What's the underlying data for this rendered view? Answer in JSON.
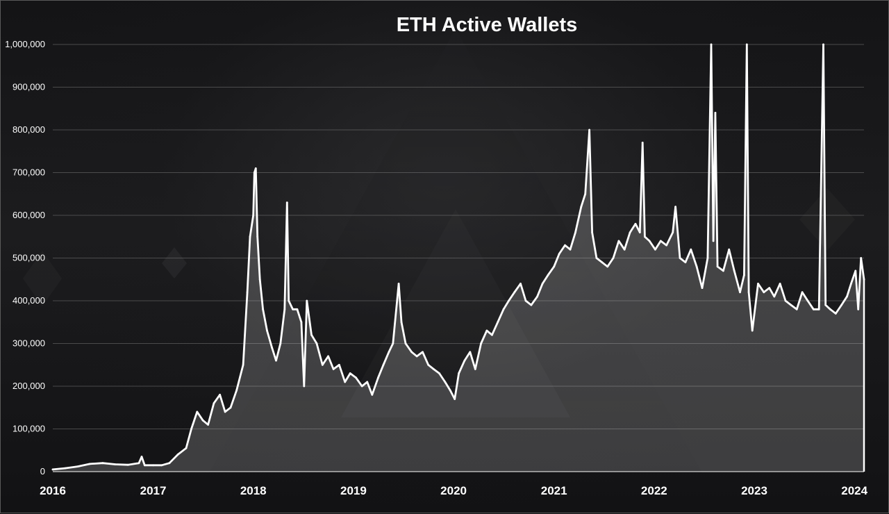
{
  "chart_data": {
    "type": "area",
    "title": "ETH Active Wallets",
    "xlabel": "",
    "ylabel": "",
    "ylim": [
      0,
      1000000
    ],
    "xlim": [
      "2016-01-01",
      "2024-02-05"
    ],
    "yticks": [
      0,
      100000,
      200000,
      300000,
      400000,
      500000,
      600000,
      700000,
      800000,
      900000,
      1000000
    ],
    "ytick_labels": [
      "0",
      "100,000",
      "200,000",
      "300,000",
      "400,000",
      "500,000",
      "600,000",
      "700,000",
      "800,000",
      "900,000",
      "1,000,000"
    ],
    "xticks": [
      "2016",
      "2017",
      "2018",
      "2019",
      "2020",
      "2021",
      "2022",
      "2023",
      "2024"
    ],
    "grid": true,
    "line_color": "#ffffff",
    "fill_color": "rgba(255,255,255,0.18)",
    "series": [
      {
        "points": [
          [
            "2016-01-01",
            5000
          ],
          [
            "2016-02-15",
            8000
          ],
          [
            "2016-04-01",
            12000
          ],
          [
            "2016-05-15",
            18000
          ],
          [
            "2016-07-01",
            20000
          ],
          [
            "2016-08-15",
            17000
          ],
          [
            "2016-10-01",
            16000
          ],
          [
            "2016-11-10",
            20000
          ],
          [
            "2016-11-20",
            35000
          ],
          [
            "2016-12-01",
            15000
          ],
          [
            "2017-01-01",
            15000
          ],
          [
            "2017-02-01",
            15000
          ],
          [
            "2017-03-01",
            20000
          ],
          [
            "2017-04-01",
            40000
          ],
          [
            "2017-05-01",
            55000
          ],
          [
            "2017-05-20",
            100000
          ],
          [
            "2017-06-10",
            140000
          ],
          [
            "2017-07-01",
            120000
          ],
          [
            "2017-07-20",
            110000
          ],
          [
            "2017-08-10",
            160000
          ],
          [
            "2017-09-01",
            180000
          ],
          [
            "2017-09-20",
            140000
          ],
          [
            "2017-10-10",
            150000
          ],
          [
            "2017-11-01",
            190000
          ],
          [
            "2017-11-25",
            250000
          ],
          [
            "2017-12-10",
            420000
          ],
          [
            "2017-12-20",
            550000
          ],
          [
            "2018-01-01",
            600000
          ],
          [
            "2018-01-05",
            700000
          ],
          [
            "2018-01-10",
            710000
          ],
          [
            "2018-01-16",
            550000
          ],
          [
            "2018-01-25",
            450000
          ],
          [
            "2018-02-05",
            380000
          ],
          [
            "2018-02-20",
            330000
          ],
          [
            "2018-03-10",
            290000
          ],
          [
            "2018-03-25",
            260000
          ],
          [
            "2018-04-10",
            300000
          ],
          [
            "2018-04-25",
            380000
          ],
          [
            "2018-05-04",
            630000
          ],
          [
            "2018-05-10",
            400000
          ],
          [
            "2018-05-25",
            380000
          ],
          [
            "2018-06-10",
            380000
          ],
          [
            "2018-06-25",
            350000
          ],
          [
            "2018-07-05",
            200000
          ],
          [
            "2018-07-15",
            400000
          ],
          [
            "2018-08-01",
            320000
          ],
          [
            "2018-08-20",
            300000
          ],
          [
            "2018-09-10",
            250000
          ],
          [
            "2018-10-01",
            270000
          ],
          [
            "2018-10-20",
            240000
          ],
          [
            "2018-11-10",
            250000
          ],
          [
            "2018-12-01",
            210000
          ],
          [
            "2018-12-20",
            230000
          ],
          [
            "2019-01-10",
            220000
          ],
          [
            "2019-02-01",
            200000
          ],
          [
            "2019-02-20",
            210000
          ],
          [
            "2019-03-10",
            180000
          ],
          [
            "2019-04-01",
            220000
          ],
          [
            "2019-04-20",
            250000
          ],
          [
            "2019-05-10",
            280000
          ],
          [
            "2019-05-25",
            300000
          ],
          [
            "2019-06-15",
            440000
          ],
          [
            "2019-06-25",
            350000
          ],
          [
            "2019-07-10",
            300000
          ],
          [
            "2019-08-01",
            280000
          ],
          [
            "2019-08-20",
            270000
          ],
          [
            "2019-09-10",
            280000
          ],
          [
            "2019-10-01",
            250000
          ],
          [
            "2019-10-20",
            240000
          ],
          [
            "2019-11-10",
            230000
          ],
          [
            "2019-12-01",
            210000
          ],
          [
            "2019-12-20",
            190000
          ],
          [
            "2020-01-05",
            170000
          ],
          [
            "2020-01-20",
            230000
          ],
          [
            "2020-02-10",
            260000
          ],
          [
            "2020-03-01",
            280000
          ],
          [
            "2020-03-20",
            240000
          ],
          [
            "2020-04-10",
            300000
          ],
          [
            "2020-05-01",
            330000
          ],
          [
            "2020-05-20",
            320000
          ],
          [
            "2020-06-10",
            350000
          ],
          [
            "2020-07-01",
            380000
          ],
          [
            "2020-07-20",
            400000
          ],
          [
            "2020-08-10",
            420000
          ],
          [
            "2020-09-01",
            440000
          ],
          [
            "2020-09-20",
            400000
          ],
          [
            "2020-10-10",
            390000
          ],
          [
            "2020-11-01",
            410000
          ],
          [
            "2020-11-20",
            440000
          ],
          [
            "2020-12-10",
            460000
          ],
          [
            "2021-01-01",
            480000
          ],
          [
            "2021-01-20",
            510000
          ],
          [
            "2021-02-10",
            530000
          ],
          [
            "2021-03-01",
            520000
          ],
          [
            "2021-03-20",
            560000
          ],
          [
            "2021-04-10",
            620000
          ],
          [
            "2021-04-25",
            650000
          ],
          [
            "2021-05-10",
            800000
          ],
          [
            "2021-05-20",
            560000
          ],
          [
            "2021-06-05",
            500000
          ],
          [
            "2021-06-25",
            490000
          ],
          [
            "2021-07-15",
            480000
          ],
          [
            "2021-08-05",
            500000
          ],
          [
            "2021-08-25",
            540000
          ],
          [
            "2021-09-15",
            520000
          ],
          [
            "2021-10-05",
            560000
          ],
          [
            "2021-10-25",
            580000
          ],
          [
            "2021-11-10",
            560000
          ],
          [
            "2021-11-20",
            770000
          ],
          [
            "2021-11-28",
            550000
          ],
          [
            "2021-12-15",
            540000
          ],
          [
            "2022-01-05",
            520000
          ],
          [
            "2022-01-25",
            540000
          ],
          [
            "2022-02-15",
            530000
          ],
          [
            "2022-03-10",
            560000
          ],
          [
            "2022-03-20",
            620000
          ],
          [
            "2022-04-05",
            500000
          ],
          [
            "2022-04-25",
            490000
          ],
          [
            "2022-05-15",
            520000
          ],
          [
            "2022-06-05",
            480000
          ],
          [
            "2022-06-25",
            430000
          ],
          [
            "2022-07-15",
            500000
          ],
          [
            "2022-07-28",
            1000000
          ],
          [
            "2022-08-05",
            540000
          ],
          [
            "2022-08-12",
            840000
          ],
          [
            "2022-08-20",
            480000
          ],
          [
            "2022-09-10",
            470000
          ],
          [
            "2022-10-01",
            520000
          ],
          [
            "2022-10-20",
            470000
          ],
          [
            "2022-11-10",
            420000
          ],
          [
            "2022-11-25",
            460000
          ],
          [
            "2022-12-05",
            1000000
          ],
          [
            "2022-12-12",
            420000
          ],
          [
            "2022-12-25",
            330000
          ],
          [
            "2023-01-15",
            440000
          ],
          [
            "2023-02-05",
            420000
          ],
          [
            "2023-02-25",
            430000
          ],
          [
            "2023-03-15",
            410000
          ],
          [
            "2023-04-05",
            440000
          ],
          [
            "2023-04-25",
            400000
          ],
          [
            "2023-05-15",
            390000
          ],
          [
            "2023-06-05",
            380000
          ],
          [
            "2023-06-25",
            420000
          ],
          [
            "2023-07-15",
            400000
          ],
          [
            "2023-08-05",
            380000
          ],
          [
            "2023-08-25",
            380000
          ],
          [
            "2023-09-10",
            1000000
          ],
          [
            "2023-09-18",
            390000
          ],
          [
            "2023-10-05",
            380000
          ],
          [
            "2023-10-25",
            370000
          ],
          [
            "2023-11-15",
            390000
          ],
          [
            "2023-12-05",
            410000
          ],
          [
            "2023-12-20",
            440000
          ],
          [
            "2024-01-05",
            470000
          ],
          [
            "2024-01-15",
            380000
          ],
          [
            "2024-01-25",
            500000
          ],
          [
            "2024-02-05",
            450000
          ]
        ]
      }
    ]
  }
}
